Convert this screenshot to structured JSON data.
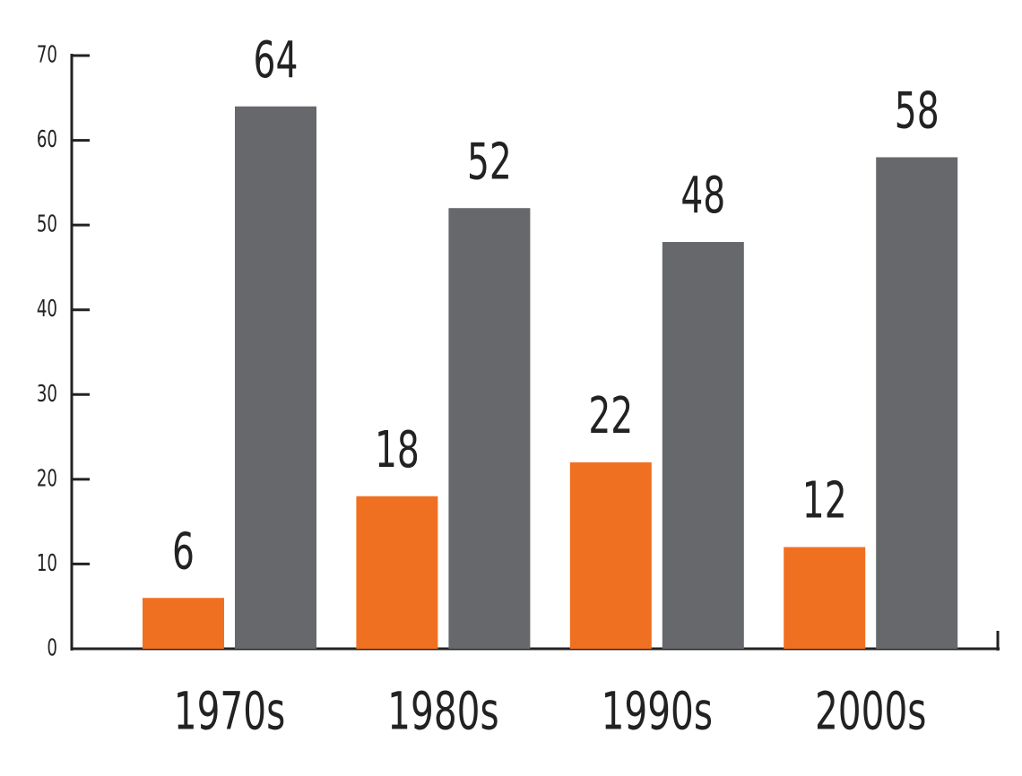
{
  "chart_data": {
    "type": "bar",
    "categories": [
      "1970s",
      "1980s",
      "1990s",
      "2000s"
    ],
    "series": [
      {
        "color": "#f07022",
        "values": [
          6,
          18,
          22,
          12
        ]
      },
      {
        "color": "#67686b",
        "values": [
          64,
          52,
          48,
          58
        ]
      }
    ],
    "ylim": [
      0,
      70
    ],
    "yticks": [
      0,
      10,
      20,
      30,
      40,
      50,
      60,
      70
    ],
    "grid": false
  }
}
